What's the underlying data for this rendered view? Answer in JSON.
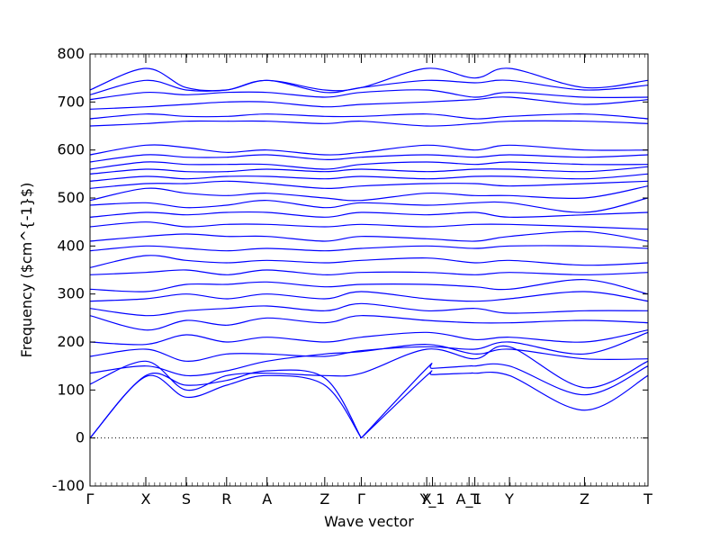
{
  "chart_data": {
    "type": "line",
    "xlabel": "Wave vector",
    "ylabel": "Frequency ($cm^{-1}$)",
    "ylim": [
      -100,
      800
    ],
    "yticks": [
      -100,
      0,
      100,
      200,
      300,
      400,
      500,
      600,
      700,
      800
    ],
    "xlim": [
      0,
      14.5
    ],
    "high_symmetry_points": [
      {
        "label": "Γ",
        "x": 0
      },
      {
        "label": "X",
        "x": 1.45
      },
      {
        "label": "S",
        "x": 2.5
      },
      {
        "label": "R",
        "x": 3.55
      },
      {
        "label": "A",
        "x": 4.6
      },
      {
        "label": "Z",
        "x": 6.1
      },
      {
        "label": "Γ",
        "x": 7.05
      },
      {
        "label": "X",
        "x": 8.75
      },
      {
        "label": "Y_1",
        "x": 8.9
      },
      {
        "label": "A_1",
        "x": 9.85
      },
      {
        "label": "T",
        "x": 10.0
      },
      {
        "label": "Y",
        "x": 10.9
      },
      {
        "label": "Z",
        "x": 12.85
      },
      {
        "label": "T",
        "x": 14.5
      }
    ],
    "zero_line": {
      "y": 0,
      "style": "dotted"
    },
    "series_color": "#0000ff",
    "series": [
      {
        "x": [
          0,
          1.45,
          2.5,
          3.55,
          4.6,
          6.1,
          7.05
        ],
        "y": [
          0,
          128,
          85,
          110,
          130,
          110,
          0
        ]
      },
      {
        "x": [
          0,
          1.45,
          2.5,
          3.55,
          4.6,
          6.1,
          7.05
        ],
        "y": [
          0,
          130,
          110,
          120,
          140,
          125,
          0
        ]
      },
      {
        "x": [
          7.05,
          8.75,
          8.9,
          9.85,
          10.0,
          10.9,
          12.85,
          14.5
        ],
        "y": [
          0,
          130,
          132,
          135,
          135,
          130,
          58,
          130
        ]
      },
      {
        "x": [
          7.05,
          8.75,
          8.9,
          9.85,
          10.0,
          10.9,
          12.85,
          14.5
        ],
        "y": [
          0,
          145,
          145,
          150,
          150,
          150,
          90,
          150
        ]
      },
      {
        "x": [
          0,
          1.45,
          2.5,
          3.55,
          4.6,
          6.1,
          7.05,
          8.75,
          10.0,
          10.9,
          12.85,
          14.5
        ],
        "y": [
          112,
          160,
          100,
          130,
          135,
          130,
          135,
          185,
          165,
          190,
          105,
          160
        ]
      },
      {
        "x": [
          0,
          1.45,
          2.5,
          3.55,
          4.6,
          6.1,
          7.05,
          8.75,
          10.0,
          10.9,
          12.85,
          14.5
        ],
        "y": [
          135,
          150,
          130,
          140,
          160,
          175,
          180,
          195,
          175,
          185,
          165,
          165
        ]
      },
      {
        "x": [
          0,
          1.45,
          2.5,
          3.55,
          4.6,
          6.1,
          7.05,
          8.75,
          10.0,
          10.9,
          12.85,
          14.5
        ],
        "y": [
          170,
          185,
          160,
          175,
          175,
          170,
          182,
          190,
          185,
          200,
          175,
          220
        ]
      },
      {
        "x": [
          0,
          1.45,
          2.5,
          3.55,
          4.6,
          6.1,
          7.05,
          8.75,
          10.0,
          10.9,
          12.85,
          14.5
        ],
        "y": [
          200,
          195,
          215,
          200,
          210,
          200,
          210,
          220,
          205,
          210,
          200,
          225
        ]
      },
      {
        "x": [
          0,
          1.45,
          2.5,
          3.55,
          4.6,
          6.1,
          7.05,
          8.75,
          10.0,
          10.9,
          12.85,
          14.5
        ],
        "y": [
          255,
          225,
          245,
          235,
          250,
          240,
          255,
          245,
          240,
          240,
          245,
          240
        ]
      },
      {
        "x": [
          0,
          1.45,
          2.5,
          3.55,
          4.6,
          6.1,
          7.05,
          8.75,
          10.0,
          10.9,
          12.85,
          14.5
        ],
        "y": [
          270,
          255,
          265,
          270,
          275,
          265,
          280,
          265,
          270,
          260,
          265,
          265
        ]
      },
      {
        "x": [
          0,
          1.45,
          2.5,
          3.55,
          4.6,
          6.1,
          7.05,
          8.75,
          10.0,
          10.9,
          12.85,
          14.5
        ],
        "y": [
          285,
          290,
          300,
          290,
          300,
          290,
          305,
          290,
          285,
          290,
          305,
          285
        ]
      },
      {
        "x": [
          0,
          1.45,
          2.5,
          3.55,
          4.6,
          6.1,
          7.05,
          8.75,
          10.0,
          10.9,
          12.85,
          14.5
        ],
        "y": [
          310,
          305,
          320,
          320,
          325,
          315,
          320,
          320,
          315,
          310,
          330,
          300
        ]
      },
      {
        "x": [
          0,
          1.45,
          2.5,
          3.55,
          4.6,
          6.1,
          7.05,
          8.75,
          10.0,
          10.9,
          12.85,
          14.5
        ],
        "y": [
          340,
          345,
          350,
          340,
          350,
          340,
          345,
          345,
          340,
          345,
          340,
          345
        ]
      },
      {
        "x": [
          0,
          1.45,
          2.5,
          3.55,
          4.6,
          6.1,
          7.05,
          8.75,
          10.0,
          10.9,
          12.85,
          14.5
        ],
        "y": [
          355,
          380,
          370,
          365,
          370,
          365,
          370,
          375,
          365,
          370,
          360,
          365
        ]
      },
      {
        "x": [
          0,
          1.45,
          2.5,
          3.55,
          4.6,
          6.1,
          7.05,
          8.75,
          10.0,
          10.9,
          12.85,
          14.5
        ],
        "y": [
          390,
          400,
          395,
          390,
          395,
          390,
          395,
          400,
          395,
          400,
          400,
          395
        ]
      },
      {
        "x": [
          0,
          1.45,
          2.5,
          3.55,
          4.6,
          6.1,
          7.05,
          8.75,
          10.0,
          10.9,
          12.85,
          14.5
        ],
        "y": [
          410,
          420,
          425,
          420,
          420,
          410,
          420,
          415,
          410,
          420,
          430,
          410
        ]
      },
      {
        "x": [
          0,
          1.45,
          2.5,
          3.55,
          4.6,
          6.1,
          7.05,
          8.75,
          10.0,
          10.9,
          12.85,
          14.5
        ],
        "y": [
          440,
          450,
          440,
          445,
          445,
          440,
          445,
          440,
          445,
          445,
          440,
          435
        ]
      },
      {
        "x": [
          0,
          1.45,
          2.5,
          3.55,
          4.6,
          6.1,
          7.05,
          8.75,
          10.0,
          10.9,
          12.85,
          14.5
        ],
        "y": [
          460,
          470,
          465,
          470,
          470,
          460,
          470,
          465,
          470,
          460,
          465,
          470
        ]
      },
      {
        "x": [
          0,
          1.45,
          2.5,
          3.55,
          4.6,
          6.1,
          7.05,
          8.75,
          10.0,
          10.9,
          12.85,
          14.5
        ],
        "y": [
          485,
          490,
          480,
          485,
          495,
          480,
          490,
          485,
          490,
          490,
          470,
          500
        ]
      },
      {
        "x": [
          0,
          1.45,
          2.5,
          3.55,
          4.6,
          6.1,
          7.05,
          8.75,
          10.0,
          10.9,
          12.85,
          14.5
        ],
        "y": [
          495,
          520,
          510,
          505,
          510,
          500,
          495,
          510,
          505,
          505,
          500,
          525
        ]
      },
      {
        "x": [
          0,
          1.45,
          2.5,
          3.55,
          4.6,
          6.1,
          7.05,
          8.75,
          10.0,
          10.9,
          12.85,
          14.5
        ],
        "y": [
          520,
          530,
          530,
          535,
          530,
          520,
          525,
          530,
          530,
          525,
          530,
          535
        ]
      },
      {
        "x": [
          0,
          1.45,
          2.5,
          3.55,
          4.6,
          6.1,
          7.05,
          8.75,
          10.0,
          10.9,
          12.85,
          14.5
        ],
        "y": [
          535,
          545,
          540,
          545,
          545,
          540,
          545,
          540,
          545,
          545,
          540,
          550
        ]
      },
      {
        "x": [
          0,
          1.45,
          2.5,
          3.55,
          4.6,
          6.1,
          7.05,
          8.75,
          10.0,
          10.9,
          12.85,
          14.5
        ],
        "y": [
          550,
          560,
          555,
          555,
          560,
          555,
          560,
          555,
          560,
          560,
          555,
          565
        ]
      },
      {
        "x": [
          0,
          1.45,
          2.5,
          3.55,
          4.6,
          6.1,
          7.05,
          8.75,
          10.0,
          10.9,
          12.85,
          14.5
        ],
        "y": [
          560,
          575,
          570,
          570,
          570,
          560,
          570,
          575,
          570,
          575,
          570,
          570
        ]
      },
      {
        "x": [
          0,
          1.45,
          2.5,
          3.55,
          4.6,
          6.1,
          7.05,
          8.75,
          10.0,
          10.9,
          12.85,
          14.5
        ],
        "y": [
          575,
          590,
          585,
          585,
          590,
          580,
          585,
          590,
          585,
          590,
          585,
          590
        ]
      },
      {
        "x": [
          0,
          1.45,
          2.5,
          3.55,
          4.6,
          6.1,
          7.05,
          8.75,
          10.0,
          10.9,
          12.85,
          14.5
        ],
        "y": [
          590,
          610,
          605,
          595,
          600,
          590,
          595,
          610,
          600,
          610,
          600,
          600
        ]
      },
      {
        "x": [
          0,
          1.45,
          2.5,
          3.55,
          4.6,
          6.1,
          7.05,
          8.75,
          10.0,
          10.9,
          12.85,
          14.5
        ],
        "y": [
          650,
          655,
          660,
          660,
          660,
          655,
          660,
          650,
          655,
          660,
          660,
          655
        ]
      },
      {
        "x": [
          0,
          1.45,
          2.5,
          3.55,
          4.6,
          6.1,
          7.05,
          8.75,
          10.0,
          10.9,
          12.85,
          14.5
        ],
        "y": [
          665,
          675,
          670,
          670,
          675,
          670,
          670,
          675,
          665,
          670,
          675,
          665
        ]
      },
      {
        "x": [
          0,
          1.45,
          2.5,
          3.55,
          4.6,
          6.1,
          7.05,
          8.75,
          10.0,
          10.9,
          12.85,
          14.5
        ],
        "y": [
          685,
          690,
          695,
          700,
          700,
          690,
          695,
          700,
          705,
          710,
          695,
          705
        ]
      },
      {
        "x": [
          0,
          1.45,
          2.5,
          3.55,
          4.6,
          6.1,
          7.05,
          8.75,
          10.0,
          10.9,
          12.85,
          14.5
        ],
        "y": [
          705,
          720,
          715,
          720,
          720,
          710,
          720,
          725,
          710,
          720,
          710,
          710
        ]
      },
      {
        "x": [
          0,
          1.45,
          2.5,
          3.55,
          4.6,
          6.1,
          7.05,
          8.75,
          10.0,
          10.9,
          12.85,
          14.5
        ],
        "y": [
          715,
          745,
          725,
          725,
          745,
          720,
          730,
          745,
          740,
          745,
          725,
          735
        ]
      },
      {
        "x": [
          0,
          1.45,
          2.5,
          3.55,
          4.6,
          6.1,
          7.05,
          8.75,
          10.0,
          10.9,
          12.85,
          14.5
        ],
        "y": [
          725,
          770,
          730,
          725,
          745,
          725,
          730,
          770,
          750,
          770,
          730,
          745
        ]
      }
    ]
  }
}
